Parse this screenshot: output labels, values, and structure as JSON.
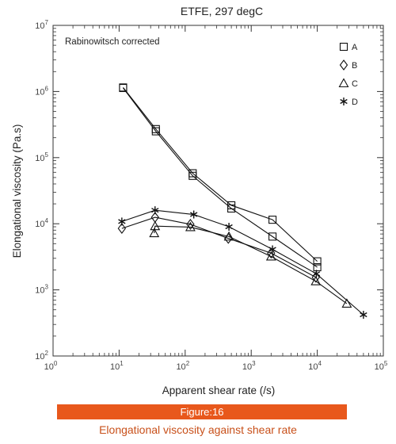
{
  "chart_data": {
    "type": "line",
    "title": "ETFE, 297 degC",
    "annotation": "Rabinowitsch corrected",
    "xlabel": "Apparent shear rate (/s)",
    "ylabel": "Elongational viscosity (Pa.s)",
    "x_scale": "log",
    "y_scale": "log",
    "xlim": [
      1,
      100000
    ],
    "ylim": [
      100,
      10000000
    ],
    "x_ticks": [
      {
        "value": 1,
        "base": "10",
        "exp": "0"
      },
      {
        "value": 10,
        "base": "10",
        "exp": "1"
      },
      {
        "value": 100,
        "base": "10",
        "exp": "2"
      },
      {
        "value": 1000,
        "base": "10",
        "exp": "3"
      },
      {
        "value": 10000,
        "base": "10",
        "exp": "4"
      },
      {
        "value": 100000,
        "base": "10",
        "exp": "5"
      }
    ],
    "y_ticks": [
      {
        "value": 100,
        "base": "10",
        "exp": "2"
      },
      {
        "value": 1000,
        "base": "10",
        "exp": "3"
      },
      {
        "value": 10000,
        "base": "10",
        "exp": "4"
      },
      {
        "value": 100000,
        "base": "10",
        "exp": "5"
      },
      {
        "value": 1000000,
        "base": "10",
        "exp": "6"
      },
      {
        "value": 10000000,
        "base": "10",
        "exp": "7"
      }
    ],
    "grid": false,
    "legend_position": "top-right",
    "series": [
      {
        "name": "A",
        "marker": "square",
        "x": [
          11.5,
          36,
          130,
          500,
          2100,
          10000
        ],
        "y": [
          1150000,
          270000,
          58000,
          19000,
          11500,
          2700
        ]
      },
      {
        "name": "A",
        "marker": "square",
        "x": [
          11.5,
          36,
          130,
          500,
          2100,
          10000
        ],
        "y": [
          1130000,
          250000,
          53000,
          17000,
          6400,
          2200
        ]
      },
      {
        "name": "B",
        "marker": "diamond",
        "x": [
          11,
          35,
          120,
          450,
          2000,
          9500
        ],
        "y": [
          8500,
          12500,
          9800,
          6000,
          3600,
          1550
        ]
      },
      {
        "name": "C",
        "marker": "triangle",
        "x": [
          34,
          35,
          120,
          460,
          2000,
          9500,
          28000
        ],
        "y": [
          7200,
          9200,
          8900,
          6400,
          3200,
          1350,
          620
        ]
      },
      {
        "name": "D",
        "marker": "asterisk",
        "x": [
          11,
          35,
          135,
          460,
          2100,
          9700,
          50000
        ],
        "y": [
          10800,
          16000,
          13800,
          9000,
          4100,
          1750,
          420
        ]
      }
    ]
  },
  "figure_label": "Figure:16",
  "figure_caption": "Elongational viscosity against shear rate"
}
